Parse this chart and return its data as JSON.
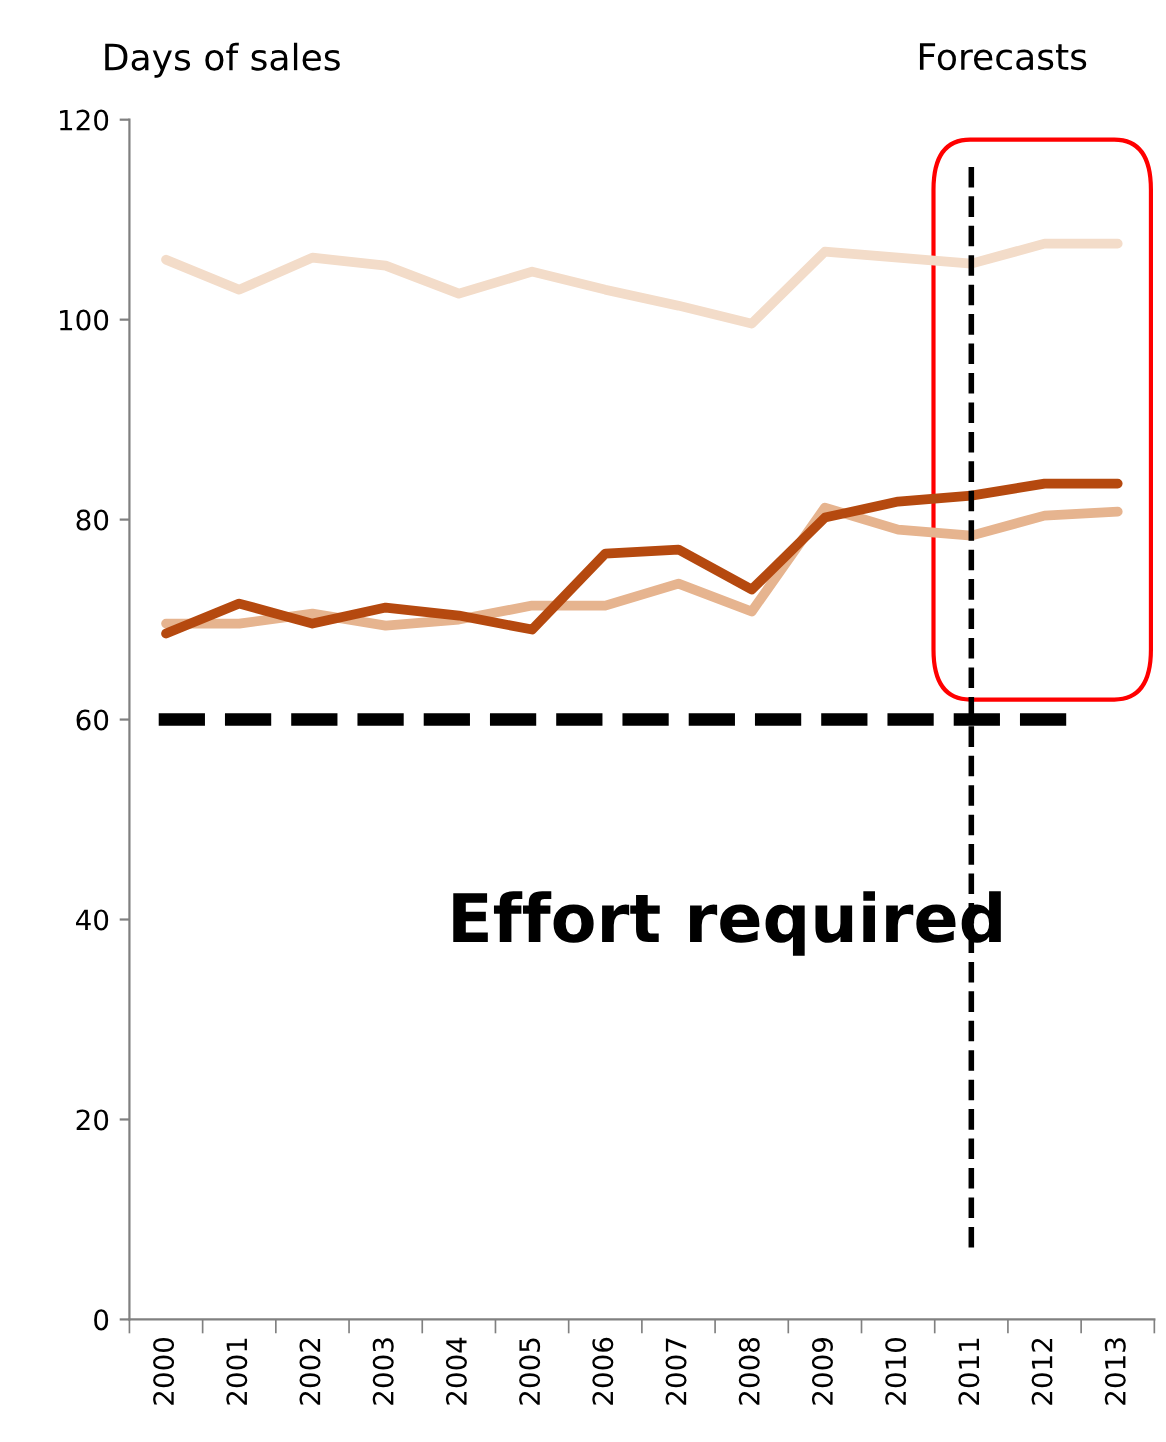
{
  "chart_data": {
    "type": "line",
    "ylabel": "Days of sales",
    "categories": [
      "2000",
      "2001",
      "2002",
      "2003",
      "2004",
      "2005",
      "2006",
      "2007",
      "2008",
      "2009",
      "2010",
      "2011",
      "2012",
      "2013"
    ],
    "series": [
      {
        "color": "#f3dcc9",
        "values": [
          106,
          103,
          106.2,
          105.4,
          102.6,
          104.8,
          103,
          101.4,
          99.6,
          106.8,
          106.2,
          105.6,
          107.6,
          107.6
        ]
      },
      {
        "color": "#e6b48f",
        "values": [
          69.6,
          69.6,
          70.6,
          69.4,
          70,
          71.4,
          71.4,
          73.6,
          70.8,
          81.2,
          79,
          78.4,
          80.4,
          80.8
        ]
      },
      {
        "color": "#b5490f",
        "values": [
          68.6,
          71.6,
          69.6,
          71.2,
          70.4,
          69,
          76.6,
          77,
          73,
          80.2,
          81.8,
          82.4,
          83.6,
          83.6
        ]
      }
    ],
    "ylim": [
      0,
      120
    ],
    "yticks": [
      0,
      20,
      40,
      60,
      80,
      100,
      120
    ],
    "ref_lines": [
      {
        "axis": "y",
        "value": 60,
        "color": "#000000",
        "line_style": "dashed"
      },
      {
        "axis": "x",
        "value": "2011",
        "label": "Forecasts",
        "color": "#000000",
        "line_style": "dashed"
      }
    ],
    "annotations": [
      "Effort required"
    ],
    "grid": false,
    "legend": false,
    "marker": "none",
    "line_style": "solid"
  }
}
